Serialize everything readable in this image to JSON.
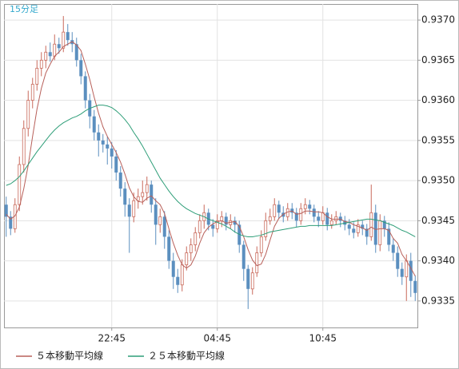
{
  "chart_data": {
    "type": "candlestick",
    "timeframe": "15分足",
    "categories": [
      null,
      null,
      null,
      null,
      null,
      null,
      null,
      null,
      null,
      null,
      null,
      null,
      null,
      null,
      null,
      null,
      null,
      null,
      null,
      null,
      null,
      null,
      null,
      null,
      "22:45",
      null,
      null,
      null,
      null,
      null,
      null,
      null,
      null,
      null,
      null,
      null,
      null,
      null,
      null,
      null,
      null,
      null,
      null,
      null,
      null,
      null,
      null,
      null,
      "04:45",
      null,
      null,
      null,
      null,
      null,
      null,
      null,
      null,
      null,
      null,
      null,
      null,
      null,
      null,
      null,
      null,
      null,
      null,
      null,
      null,
      null,
      null,
      null,
      "10:45",
      null,
      null,
      null,
      null,
      null,
      null,
      null,
      null,
      null,
      null,
      null,
      null,
      null,
      null,
      null,
      null,
      null,
      null,
      null,
      null,
      null
    ],
    "open": [
      0.9347,
      0.93455,
      0.9344,
      0.9347,
      0.9352,
      0.93565,
      0.936,
      0.9362,
      0.9364,
      0.9365,
      0.9366,
      0.93655,
      0.9367,
      0.93665,
      0.93685,
      0.93675,
      0.9367,
      0.9365,
      0.9363,
      0.936,
      0.9358,
      0.9356,
      0.9355,
      0.93545,
      0.9354,
      0.9353,
      0.9351,
      0.9349,
      0.9347,
      0.93455,
      0.93475,
      0.9348,
      0.93485,
      0.93495,
      0.9347,
      0.93445,
      0.93455,
      0.9343,
      0.934,
      0.9338,
      0.9337,
      0.93395,
      0.9341,
      0.9342,
      0.93435,
      0.9345,
      0.9346,
      0.93445,
      0.9344,
      0.9345,
      0.93455,
      0.93445,
      0.9345,
      0.93445,
      0.9342,
      0.9339,
      0.93365,
      0.93385,
      0.9341,
      0.9343,
      0.9345,
      0.93455,
      0.9347,
      0.9346,
      0.93455,
      0.93465,
      0.9346,
      0.9345,
      0.93465,
      0.9347,
      0.93465,
      0.93455,
      0.9345,
      0.9346,
      0.93445,
      0.9345,
      0.93455,
      0.9345,
      0.93445,
      0.9344,
      0.93435,
      0.93445,
      0.9344,
      0.9343,
      0.9346,
      0.9342,
      0.9345,
      0.9344,
      0.9342,
      0.9341,
      0.9339,
      0.9338,
      0.934,
      0.93375
    ],
    "high": [
      0.9348,
      0.93462,
      0.93478,
      0.9353,
      0.93575,
      0.93612,
      0.93628,
      0.9365,
      0.9366,
      0.93668,
      0.93672,
      0.93682,
      0.93678,
      0.93705,
      0.93695,
      0.93685,
      0.93678,
      0.93658,
      0.93636,
      0.93608,
      0.93588,
      0.9357,
      0.93558,
      0.93555,
      0.93548,
      0.93538,
      0.93518,
      0.93498,
      0.93478,
      0.93485,
      0.9349,
      0.935,
      0.93505,
      0.935,
      0.93478,
      0.93465,
      0.93462,
      0.93438,
      0.9341,
      0.9339,
      0.93402,
      0.93418,
      0.93428,
      0.93442,
      0.93458,
      0.9347,
      0.93465,
      0.93452,
      0.93458,
      0.93462,
      0.9346,
      0.93458,
      0.93455,
      0.9345,
      0.93425,
      0.93395,
      0.93392,
      0.93418,
      0.93438,
      0.9346,
      0.93465,
      0.93478,
      0.93475,
      0.93468,
      0.93472,
      0.93472,
      0.93466,
      0.93472,
      0.93478,
      0.93476,
      0.9347,
      0.93462,
      0.93468,
      0.93466,
      0.93458,
      0.93462,
      0.9346,
      0.93456,
      0.93452,
      0.93448,
      0.93452,
      0.9345,
      0.93446,
      0.93495,
      0.9347,
      0.93458,
      0.93456,
      0.93448,
      0.93428,
      0.93418,
      0.93398,
      0.93408,
      0.9341,
      0.93382
    ],
    "low": [
      0.9343,
      0.93432,
      0.93435,
      0.93462,
      0.9351,
      0.93555,
      0.9359,
      0.93612,
      0.9363,
      0.9364,
      0.93648,
      0.9365,
      0.93658,
      0.9366,
      0.93668,
      0.9366,
      0.93642,
      0.9362,
      0.9359,
      0.93565,
      0.9355,
      0.9353,
      0.93535,
      0.9352,
      0.93515,
      0.935,
      0.9348,
      0.93455,
      0.9341,
      0.93448,
      0.93465,
      0.9347,
      0.93475,
      0.9346,
      0.9342,
      0.93435,
      0.93415,
      0.9339,
      0.93365,
      0.9336,
      0.93362,
      0.93388,
      0.934,
      0.93412,
      0.93428,
      0.9344,
      0.93438,
      0.9343,
      0.93435,
      0.93442,
      0.93438,
      0.9344,
      0.93435,
      0.9341,
      0.93375,
      0.9334,
      0.93358,
      0.9338,
      0.93405,
      0.93425,
      0.93445,
      0.9345,
      0.93452,
      0.93448,
      0.9345,
      0.93452,
      0.93442,
      0.93445,
      0.93458,
      0.93458,
      0.93448,
      0.93442,
      0.93445,
      0.93438,
      0.9344,
      0.93445,
      0.93442,
      0.93438,
      0.93432,
      0.93428,
      0.9343,
      0.93432,
      0.9342,
      0.93425,
      0.9341,
      0.93412,
      0.9343,
      0.93412,
      0.934,
      0.9338,
      0.9337,
      0.9335,
      0.93355,
      0.9335
    ],
    "close": [
      0.93455,
      0.9344,
      0.9347,
      0.9352,
      0.93565,
      0.936,
      0.9362,
      0.9364,
      0.9365,
      0.9366,
      0.93655,
      0.9367,
      0.93665,
      0.93685,
      0.93675,
      0.9367,
      0.9365,
      0.9363,
      0.936,
      0.9358,
      0.9356,
      0.9355,
      0.93545,
      0.9354,
      0.9353,
      0.9351,
      0.9349,
      0.9347,
      0.93455,
      0.93475,
      0.9348,
      0.93485,
      0.93495,
      0.9347,
      0.93445,
      0.93455,
      0.9343,
      0.934,
      0.9338,
      0.9337,
      0.93395,
      0.9341,
      0.9342,
      0.93435,
      0.9345,
      0.9346,
      0.93445,
      0.9344,
      0.9345,
      0.93455,
      0.93445,
      0.9345,
      0.93445,
      0.9342,
      0.9339,
      0.93365,
      0.93385,
      0.9341,
      0.9343,
      0.9345,
      0.93455,
      0.9347,
      0.9346,
      0.93455,
      0.93465,
      0.9346,
      0.9345,
      0.93465,
      0.9347,
      0.93465,
      0.93455,
      0.9345,
      0.9346,
      0.93445,
      0.9345,
      0.93455,
      0.9345,
      0.93445,
      0.9344,
      0.93435,
      0.93445,
      0.9344,
      0.9343,
      0.9346,
      0.9342,
      0.9345,
      0.9344,
      0.9342,
      0.9341,
      0.9339,
      0.9338,
      0.934,
      0.93375,
      0.9336
    ],
    "up_color": "#c8695a",
    "down_color": "#5b8fbf",
    "series": [
      {
        "name": "５本移動平均線",
        "color": "#b8605a",
        "values": [
          0.93458,
          0.93452,
          0.93456,
          0.93467,
          0.9349,
          0.93519,
          0.93555,
          0.93589,
          0.93615,
          0.93634,
          0.93645,
          0.93655,
          0.9366,
          0.93667,
          0.9367,
          0.93673,
          0.93669,
          0.93662,
          0.93645,
          0.93626,
          0.93604,
          0.93584,
          0.93567,
          0.93555,
          0.93545,
          0.93535,
          0.93523,
          0.93508,
          0.93491,
          0.9348,
          0.93474,
          0.93473,
          0.93478,
          0.93481,
          0.93475,
          0.9347,
          0.93459,
          0.9344,
          0.93422,
          0.93407,
          0.93395,
          0.93391,
          0.93395,
          0.93406,
          0.93422,
          0.93435,
          0.93442,
          0.93446,
          0.93449,
          0.9345,
          0.93447,
          0.93448,
          0.93449,
          0.93443,
          0.9343,
          0.93414,
          0.93401,
          0.93394,
          0.93396,
          0.93408,
          0.93426,
          0.93443,
          0.93453,
          0.93458,
          0.93461,
          0.93462,
          0.93458,
          0.93459,
          0.93462,
          0.93462,
          0.93461,
          0.93461,
          0.9346,
          0.93455,
          0.93452,
          0.93452,
          0.93452,
          0.93449,
          0.93448,
          0.93445,
          0.93443,
          0.93441,
          0.93438,
          0.93442,
          0.93439,
          0.9344,
          0.9344,
          0.93438,
          0.93428,
          0.93422,
          0.93408,
          0.934,
          0.93391,
          0.93381
        ]
      },
      {
        "name": "２５本移動平均線",
        "color": "#2e9e78",
        "values": [
          0.93494,
          0.93496,
          0.935,
          0.93505,
          0.93512,
          0.9352,
          0.93528,
          0.93536,
          0.93543,
          0.9355,
          0.93557,
          0.93563,
          0.93568,
          0.93572,
          0.93575,
          0.93578,
          0.9358,
          0.93583,
          0.93587,
          0.9359,
          0.93592,
          0.93594,
          0.93594,
          0.93593,
          0.93591,
          0.93587,
          0.93582,
          0.93576,
          0.93569,
          0.9356,
          0.93552,
          0.93543,
          0.93533,
          0.93523,
          0.93513,
          0.93503,
          0.93495,
          0.93487,
          0.9348,
          0.93474,
          0.93469,
          0.93465,
          0.93462,
          0.93459,
          0.93457,
          0.93455,
          0.93452,
          0.9345,
          0.93448,
          0.93446,
          0.93443,
          0.9344,
          0.93436,
          0.93433,
          0.93431,
          0.9343,
          0.9343,
          0.93431,
          0.93432,
          0.93434,
          0.93436,
          0.93437,
          0.93438,
          0.93439,
          0.9344,
          0.93441,
          0.93442,
          0.93443,
          0.93443,
          0.93444,
          0.93444,
          0.93444,
          0.93444,
          0.93444,
          0.93444,
          0.93445,
          0.93446,
          0.93447,
          0.93448,
          0.93449,
          0.9345,
          0.93451,
          0.93452,
          0.93452,
          0.93451,
          0.9345,
          0.93448,
          0.93446,
          0.93444,
          0.93441,
          0.93438,
          0.93436,
          0.93433,
          0.9343
        ]
      }
    ],
    "ylim": [
      0.93317,
      0.9372
    ],
    "yticks": [
      0.9335,
      {
        "value": 0.934,
        "label": "0.9340"
      },
      0.9345,
      {
        "value": 0.935,
        "label": "0.9350"
      },
      0.9355,
      {
        "value": 0.936,
        "label": "0.9360"
      },
      0.9365,
      {
        "value": 0.937,
        "label": "0.9370"
      }
    ],
    "grid": true
  }
}
